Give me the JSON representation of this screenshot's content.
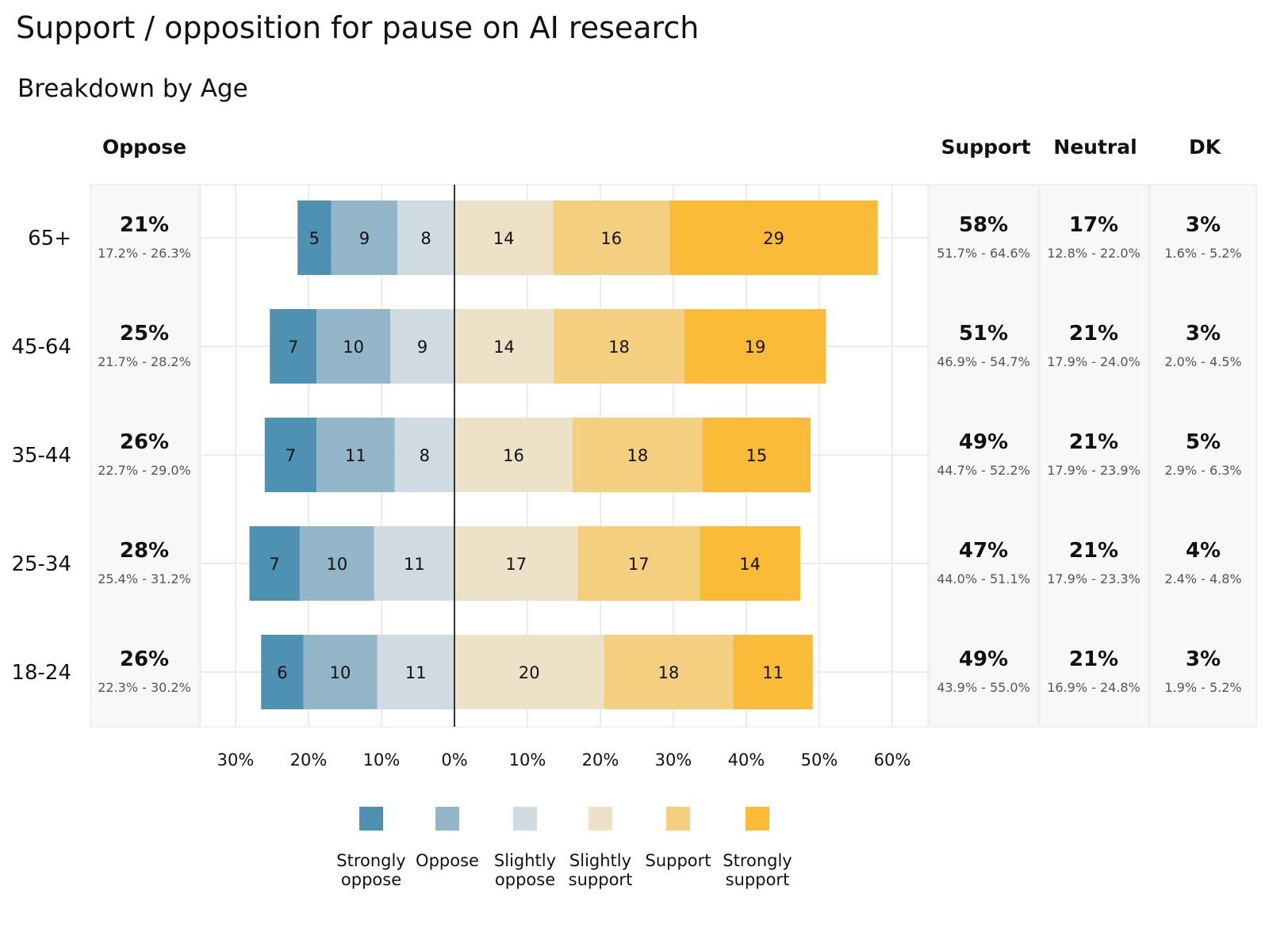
{
  "chart_data": {
    "type": "bar",
    "orientation": "horizontal-diverging-stacked",
    "title": "Support / opposition for pause on AI research",
    "subtitle": "Breakdown by Age",
    "columns": {
      "oppose": "Oppose",
      "support": "Support",
      "neutral": "Neutral",
      "dk": "DK"
    },
    "categories": [
      "65+",
      "45-64",
      "35-44",
      "25-34",
      "18-24"
    ],
    "series": [
      {
        "key": "strongly_oppose",
        "name": "Strongly oppose",
        "legend_lines": [
          "Strongly",
          "oppose"
        ],
        "side": "left",
        "color": "#4e91b3",
        "values": [
          5,
          7,
          7,
          7,
          6
        ]
      },
      {
        "key": "oppose",
        "name": "Oppose",
        "legend_lines": [
          "Oppose"
        ],
        "side": "left",
        "color": "#93b5c8",
        "values": [
          9,
          10,
          11,
          10,
          10
        ]
      },
      {
        "key": "slightly_oppose",
        "name": "Slightly oppose",
        "legend_lines": [
          "Slightly",
          "oppose"
        ],
        "side": "left",
        "color": "#cfdbe1",
        "values": [
          8,
          9,
          8,
          11,
          11
        ]
      },
      {
        "key": "slightly_support",
        "name": "Slightly support",
        "legend_lines": [
          "Slightly",
          "support"
        ],
        "side": "right",
        "color": "#ede1c8",
        "values": [
          14,
          14,
          16,
          17,
          20
        ]
      },
      {
        "key": "support",
        "name": "Support",
        "legend_lines": [
          "Support"
        ],
        "side": "right",
        "color": "#f4cf80",
        "values": [
          16,
          18,
          18,
          17,
          18
        ]
      },
      {
        "key": "strongly_support",
        "name": "Strongly support",
        "legend_lines": [
          "Strongly",
          "support"
        ],
        "side": "right",
        "color": "#fabb38",
        "values": [
          29,
          19,
          15,
          14,
          11
        ]
      }
    ],
    "bar_extents": {
      "left_ends": [
        21.5,
        25.3,
        26.0,
        28.1,
        26.5
      ],
      "right_ends": [
        58.0,
        50.9,
        48.8,
        47.4,
        49.1
      ],
      "left_breaks": [
        [
          21.5,
          16.9,
          7.8,
          0
        ],
        [
          25.3,
          18.9,
          8.8,
          0
        ],
        [
          26.0,
          18.9,
          8.2,
          0
        ],
        [
          28.1,
          21.2,
          11.0,
          0
        ],
        [
          26.5,
          20.7,
          10.6,
          0
        ]
      ],
      "right_breaks": [
        [
          0,
          13.5,
          29.5,
          58.0
        ],
        [
          0,
          13.6,
          31.5,
          50.9
        ],
        [
          0,
          16.2,
          34.0,
          48.8
        ],
        [
          0,
          16.9,
          33.6,
          47.4
        ],
        [
          0,
          20.5,
          38.2,
          49.1
        ]
      ]
    },
    "summary": {
      "oppose": {
        "pct": [
          "21%",
          "25%",
          "26%",
          "28%",
          "26%"
        ],
        "ci": [
          "17.2% - 26.3%",
          "21.7% - 28.2%",
          "22.7% - 29.0%",
          "25.4% - 31.2%",
          "22.3% - 30.2%"
        ]
      },
      "support": {
        "pct": [
          "58%",
          "51%",
          "49%",
          "47%",
          "49%"
        ],
        "ci": [
          "51.7% - 64.6%",
          "46.9% - 54.7%",
          "44.7% - 52.2%",
          "44.0% - 51.1%",
          "43.9% - 55.0%"
        ]
      },
      "neutral": {
        "pct": [
          "17%",
          "21%",
          "21%",
          "21%",
          "21%"
        ],
        "ci": [
          "12.8% - 22.0%",
          "17.9% - 24.0%",
          "17.9% - 23.9%",
          "17.9% - 23.3%",
          "16.9% - 24.8%"
        ]
      },
      "dk": {
        "pct": [
          "3%",
          "3%",
          "5%",
          "4%",
          "3%"
        ],
        "ci": [
          "1.6% - 5.2%",
          "2.0% - 4.5%",
          "2.9% - 6.3%",
          "2.4% - 4.8%",
          "1.9% - 5.2%"
        ]
      }
    },
    "x_ticks": [
      -30,
      -20,
      -10,
      0,
      10,
      20,
      30,
      40,
      50,
      60
    ],
    "x_tick_labels": [
      "30%",
      "20%",
      "10%",
      "0%",
      "10%",
      "20%",
      "30%",
      "40%",
      "50%",
      "60%"
    ],
    "xlim": [
      -30,
      60
    ],
    "grid": true,
    "legend_position": "bottom"
  }
}
